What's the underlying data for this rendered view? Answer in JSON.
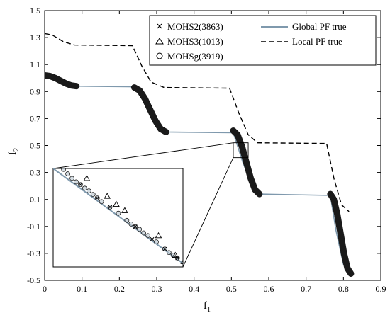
{
  "chart_data": {
    "type": "scatter",
    "xlabel": "f",
    "xlabel_sub": "1",
    "ylabel": "f",
    "ylabel_sub": "2",
    "xlim": [
      0,
      0.9
    ],
    "ylim": [
      -0.5,
      1.5
    ],
    "xticks": [
      "0",
      "0.1",
      "0.2",
      "0.3",
      "0.4",
      "0.5",
      "0.6",
      "0.7",
      "0.8",
      "0.9"
    ],
    "yticks": [
      "-0.5",
      "-0.3",
      "-0.1",
      "0.1",
      "0.3",
      "0.5",
      "0.7",
      "0.9",
      "1.1",
      "1.3",
      "1.5"
    ],
    "grid": false,
    "legend_position": "top-right",
    "legend": [
      {
        "label": "MOHS2(3863)",
        "marker": "x"
      },
      {
        "label": "MOHS3(1013)",
        "marker": "triangle"
      },
      {
        "label": "MOHSg(3919)",
        "marker": "circle"
      },
      {
        "label": "Global PF true",
        "line": "solid",
        "color": "#7f99ad"
      },
      {
        "label": "Local PF true",
        "line": "dashed",
        "color": "#000000"
      }
    ],
    "global_pf_true": {
      "x": [
        0,
        0.03,
        0.06,
        0.085,
        0.245,
        0.27,
        0.295,
        0.325,
        0.505,
        0.53,
        0.555,
        0.575,
        0.765,
        0.78,
        0.8,
        0.82
      ],
      "y": [
        1.02,
        1.0,
        0.96,
        0.94,
        0.935,
        0.82,
        0.66,
        0.6,
        0.595,
        0.38,
        0.2,
        0.14,
        0.13,
        -0.13,
        -0.38,
        -0.45
      ]
    },
    "local_pf_true": {
      "x": [
        0,
        0.02,
        0.05,
        0.08,
        0.235,
        0.26,
        0.285,
        0.32,
        0.495,
        0.52,
        0.545,
        0.57,
        0.755,
        0.775,
        0.795,
        0.815
      ],
      "y": [
        1.33,
        1.32,
        1.27,
        1.245,
        1.24,
        1.09,
        0.97,
        0.93,
        0.925,
        0.74,
        0.58,
        0.52,
        0.515,
        0.25,
        0.06,
        0.01
      ]
    },
    "solution_clusters": [
      {
        "x_start": 0.0,
        "x_end": 0.085,
        "y_start": 1.02,
        "y_end": 0.94
      },
      {
        "x_start": 0.24,
        "x_end": 0.325,
        "y_start": 0.93,
        "y_end": 0.6
      },
      {
        "x_start": 0.505,
        "x_end": 0.575,
        "y_start": 0.61,
        "y_end": 0.14
      },
      {
        "x_start": 0.765,
        "x_end": 0.82,
        "y_start": 0.14,
        "y_end": -0.45
      }
    ],
    "zoom_region": {
      "xlim": [
        0.505,
        0.545
      ],
      "ylim": [
        0.41,
        0.52
      ]
    },
    "inset": {
      "line": {
        "x": [
          0.505,
          0.5465
        ],
        "y": [
          0.52,
          0.41
        ]
      },
      "circles": [
        {
          "x": 0.5082,
          "y": 0.519
        },
        {
          "x": 0.5095,
          "y": 0.514
        },
        {
          "x": 0.5108,
          "y": 0.509
        },
        {
          "x": 0.5121,
          "y": 0.505
        },
        {
          "x": 0.5134,
          "y": 0.502
        },
        {
          "x": 0.5147,
          "y": 0.498
        },
        {
          "x": 0.516,
          "y": 0.495
        },
        {
          "x": 0.5173,
          "y": 0.491
        },
        {
          "x": 0.5186,
          "y": 0.487
        },
        {
          "x": 0.5199,
          "y": 0.483
        },
        {
          "x": 0.5225,
          "y": 0.477
        },
        {
          "x": 0.5251,
          "y": 0.47
        },
        {
          "x": 0.5277,
          "y": 0.462
        },
        {
          "x": 0.529,
          "y": 0.458
        },
        {
          "x": 0.5303,
          "y": 0.455
        },
        {
          "x": 0.5316,
          "y": 0.452
        },
        {
          "x": 0.5329,
          "y": 0.448
        },
        {
          "x": 0.5342,
          "y": 0.445
        },
        {
          "x": 0.5368,
          "y": 0.438
        },
        {
          "x": 0.5394,
          "y": 0.43
        },
        {
          "x": 0.5407,
          "y": 0.426
        },
        {
          "x": 0.542,
          "y": 0.423
        },
        {
          "x": 0.5433,
          "y": 0.42
        }
      ],
      "crosses": [
        {
          "x": 0.5134,
          "y": 0.502
        },
        {
          "x": 0.5186,
          "y": 0.487
        },
        {
          "x": 0.5225,
          "y": 0.477
        },
        {
          "x": 0.5303,
          "y": 0.455
        },
        {
          "x": 0.5355,
          "y": 0.441
        },
        {
          "x": 0.5394,
          "y": 0.43
        },
        {
          "x": 0.5433,
          "y": 0.42
        }
      ],
      "triangles": [
        {
          "x": 0.5147,
          "y": 0.509
        },
        {
          "x": 0.521,
          "y": 0.489
        },
        {
          "x": 0.5238,
          "y": 0.48
        },
        {
          "x": 0.5264,
          "y": 0.473
        },
        {
          "x": 0.5368,
          "y": 0.445
        },
        {
          "x": 0.542,
          "y": 0.423
        },
        {
          "x": 0.5446,
          "y": 0.416
        }
      ]
    }
  }
}
